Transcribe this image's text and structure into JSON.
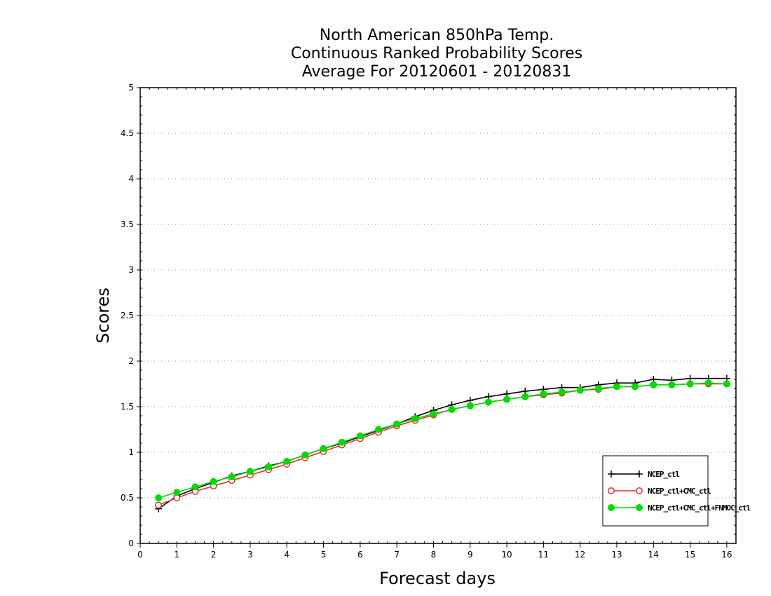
{
  "chart_data": {
    "type": "line",
    "title": [
      "North American 850hPa Temp.",
      "Continuous Ranked Probability Scores",
      "Average For 20120601 - 20120831"
    ],
    "xlabel": "Forecast days",
    "ylabel": "Scores",
    "xlim": [
      0,
      16.25
    ],
    "ylim": [
      0,
      5
    ],
    "xticks": [
      0,
      1,
      2,
      3,
      4,
      5,
      6,
      7,
      8,
      9,
      10,
      11,
      12,
      13,
      14,
      15,
      16
    ],
    "xtick_labels": [
      "0",
      "1",
      "2",
      "3",
      "4",
      "5",
      "6",
      "7",
      "8",
      "9",
      "10",
      "11",
      "12",
      "13",
      "14",
      "15",
      "16"
    ],
    "yticks": [
      0,
      0.5,
      1,
      1.5,
      2,
      2.5,
      3,
      3.5,
      4,
      4.5,
      5
    ],
    "ytick_labels": [
      "0",
      "0.5",
      "1",
      "1.5",
      "2",
      "2.5",
      "3",
      "3.5",
      "4",
      "4.5",
      "5"
    ],
    "grid": "horizontal-dotted",
    "legend_position": "bottom-right",
    "x": [
      0.5,
      1,
      1.5,
      2,
      2.5,
      3,
      3.5,
      4,
      4.5,
      5,
      5.5,
      6,
      6.5,
      7,
      7.5,
      8,
      8.5,
      9,
      9.5,
      10,
      10.5,
      11,
      11.5,
      12,
      12.5,
      13,
      13.5,
      14,
      14.5,
      15,
      15.5,
      16
    ],
    "series": [
      {
        "name": "NCEP_ctl",
        "color": "#000000",
        "marker": "plus",
        "values": [
          0.38,
          0.52,
          0.6,
          0.67,
          0.74,
          0.79,
          0.85,
          0.9,
          0.97,
          1.04,
          1.1,
          1.17,
          1.24,
          1.31,
          1.39,
          1.46,
          1.52,
          1.57,
          1.61,
          1.64,
          1.67,
          1.69,
          1.71,
          1.71,
          1.74,
          1.76,
          1.76,
          1.8,
          1.79,
          1.81,
          1.81,
          1.81
        ]
      },
      {
        "name": "NCEP_ctl+CMC_ctl",
        "color": "#e03030",
        "marker": "open-circle",
        "values": [
          0.42,
          0.5,
          0.57,
          0.63,
          0.69,
          0.75,
          0.81,
          0.87,
          0.94,
          1.01,
          1.08,
          1.15,
          1.22,
          1.29,
          1.35,
          1.41,
          1.47,
          1.51,
          1.55,
          1.58,
          1.61,
          1.63,
          1.65,
          1.68,
          1.69,
          1.72,
          1.72,
          1.74,
          1.74,
          1.75,
          1.75,
          1.75
        ]
      },
      {
        "name": "NCEP_ctl+CMC_ctl+FNMOC_ctl",
        "color": "#00dd00",
        "marker": "filled-circle",
        "values": [
          0.5,
          0.56,
          0.62,
          0.68,
          0.73,
          0.79,
          0.84,
          0.9,
          0.97,
          1.04,
          1.11,
          1.18,
          1.25,
          1.31,
          1.37,
          1.42,
          1.47,
          1.51,
          1.55,
          1.58,
          1.61,
          1.64,
          1.66,
          1.68,
          1.7,
          1.72,
          1.72,
          1.74,
          1.74,
          1.75,
          1.76,
          1.75
        ]
      }
    ]
  }
}
